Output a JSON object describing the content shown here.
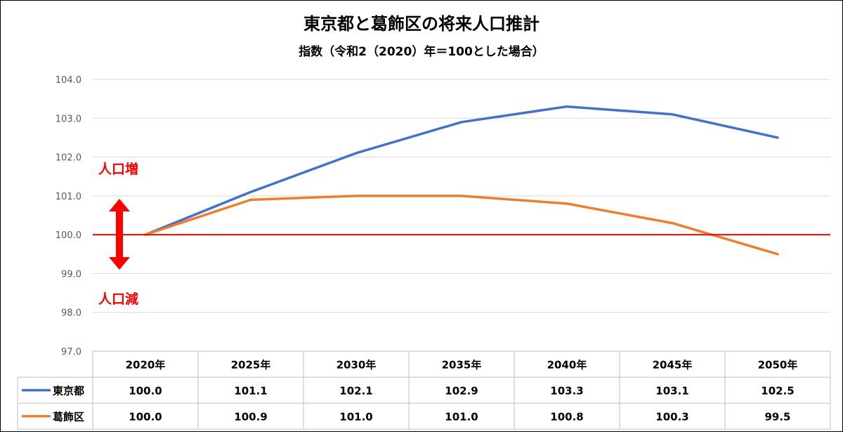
{
  "chart_data": {
    "type": "line",
    "title": "東京都と葛飾区の将来人口推計",
    "subtitle": "指数（令和2（2020）年＝100とした場合）",
    "categories": [
      "2020年",
      "2025年",
      "2030年",
      "2035年",
      "2040年",
      "2045年",
      "2050年"
    ],
    "series": [
      {
        "name": "東京都",
        "color": "#4472c4",
        "values": [
          100.0,
          101.1,
          102.1,
          102.9,
          103.3,
          103.1,
          102.5
        ]
      },
      {
        "name": "葛飾区",
        "color": "#ed7d31",
        "values": [
          100.0,
          100.9,
          101.0,
          101.0,
          100.8,
          100.3,
          99.5
        ]
      }
    ],
    "ylim": [
      97.0,
      104.0
    ],
    "yticks": [
      "97.0",
      "98.0",
      "99.0",
      "100.0",
      "101.0",
      "102.0",
      "103.0",
      "104.0"
    ],
    "reference_line": {
      "value": 100.0,
      "color": "#ff0000"
    },
    "annotations": {
      "increase": "人口増",
      "decrease": "人口減",
      "color": "#ff0000"
    },
    "gridlines": true,
    "legend": "data-table"
  }
}
